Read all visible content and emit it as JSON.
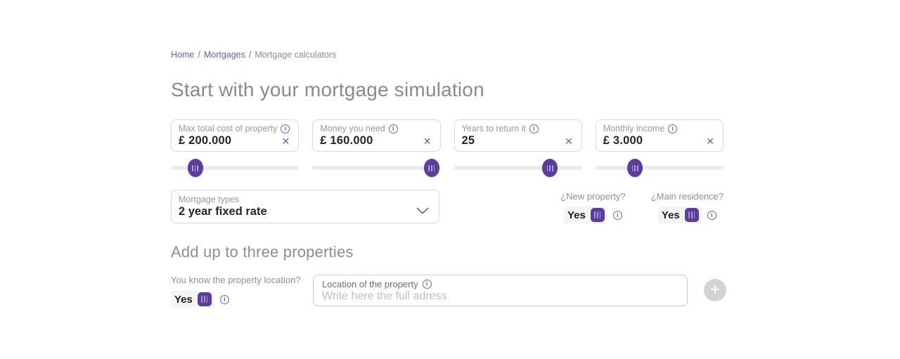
{
  "breadcrumb": {
    "items": [
      {
        "label": "Home"
      },
      {
        "label": "Mortgages"
      },
      {
        "label": "Mortgage calculators"
      }
    ],
    "separator": "/"
  },
  "page_title": "Start with your mortgage simulation",
  "icons": {
    "info": "i",
    "clear": "✕",
    "plus": "+"
  },
  "simulator": {
    "fields": [
      {
        "label": "Max total cost of property",
        "value": "£ 200.000",
        "slider_percent": 19
      },
      {
        "label": "Money you need",
        "value": "£ 160.000",
        "slider_percent": 93
      },
      {
        "label": "Years to return it",
        "value": "25",
        "slider_percent": 75
      },
      {
        "label": "Monthly income",
        "value": "£ 3.000",
        "slider_percent": 31
      }
    ],
    "mortgage_type": {
      "label": "Mortgage types",
      "value": "2 year fixed rate"
    },
    "toggles": [
      {
        "question": "¿New property?",
        "value": "Yes"
      },
      {
        "question": "¿Main residence?",
        "value": "Yes"
      }
    ]
  },
  "properties_section": {
    "heading": "Add up to three properties",
    "location_toggle": {
      "question": "You know the property location?",
      "value": "Yes"
    },
    "location_input": {
      "label": "Location of the property",
      "placeholder": "Write here the full adress",
      "value": ""
    }
  },
  "colors": {
    "accent_purple": "#5b3d9e",
    "icon_purple": "#7561b3",
    "link_purple": "#6f5aa8",
    "label_grey": "#9a9a9a",
    "value_dark": "#262626"
  }
}
